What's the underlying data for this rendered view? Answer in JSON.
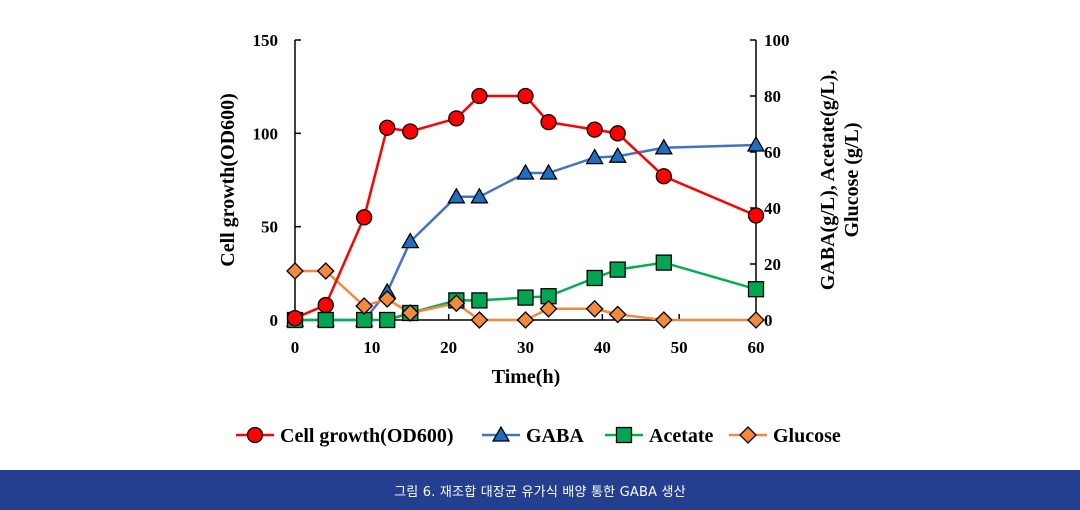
{
  "caption": "그림 6.  재조합 대장균 유가식 배양 통한 GABA 생산",
  "chart_data": {
    "type": "line",
    "xlabel": "Time(h)",
    "ylabel_left": "Cell growth(OD600)",
    "ylabel_right_line1": "GABA(g/L), Acetate(g/L),",
    "ylabel_right_line2": "Glucose (g/L)",
    "xlim": [
      0,
      60
    ],
    "ylim_left": [
      0,
      150
    ],
    "ylim_right": [
      0,
      100
    ],
    "x_ticks": [
      "0",
      "10",
      "20",
      "30",
      "40",
      "50",
      "60"
    ],
    "y_left_ticks": [
      "0",
      "50",
      "100",
      "150"
    ],
    "y_right_ticks": [
      "0",
      "20",
      "40",
      "60",
      "80",
      "100"
    ],
    "legend_position": "bottom",
    "series": [
      {
        "name": "Cell growth(OD600)",
        "axis": "left",
        "marker": "circle",
        "color": "#ff0000",
        "fill": "#ff0000",
        "x": [
          0,
          4,
          9,
          12,
          15,
          21,
          24,
          30,
          33,
          39,
          42,
          48,
          60
        ],
        "y": [
          1,
          8,
          55,
          103,
          101,
          108,
          120,
          120,
          106,
          102,
          100,
          77,
          56
        ]
      },
      {
        "name": "GABA",
        "axis": "right",
        "marker": "triangle",
        "color": "#4472c4",
        "fill": "#1f6fc0",
        "x": [
          0,
          4,
          9,
          12,
          15,
          21,
          24,
          30,
          33,
          39,
          42,
          48,
          60
        ],
        "y": [
          0,
          0,
          0,
          10,
          28,
          44,
          44,
          52.5,
          52.5,
          58,
          58.5,
          61.5,
          62.5
        ]
      },
      {
        "name": "Acetate",
        "axis": "right",
        "marker": "square",
        "color": "#00b050",
        "fill": "#00a651",
        "x": [
          0,
          4,
          9,
          12,
          15,
          21,
          24,
          30,
          33,
          39,
          42,
          48,
          60
        ],
        "y": [
          0,
          0,
          0,
          0,
          2.5,
          7,
          7,
          8,
          8.5,
          15,
          18,
          20.5,
          11
        ]
      },
      {
        "name": "Glucose",
        "axis": "right",
        "marker": "diamond",
        "color": "#f4883b",
        "fill": "#f4883b",
        "x": [
          0,
          4,
          9,
          12,
          15,
          21,
          24,
          30,
          33,
          39,
          42,
          48,
          60
        ],
        "y": [
          17.5,
          17.5,
          5,
          7.5,
          2.5,
          6,
          0,
          0,
          4,
          4,
          2,
          0,
          0
        ]
      }
    ]
  }
}
